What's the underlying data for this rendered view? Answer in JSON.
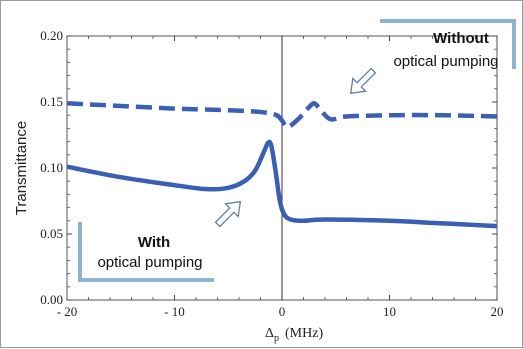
{
  "chart_data": {
    "type": "line",
    "xlabel_main": "Δ",
    "xlabel_sub": "p",
    "xlabel_unit": "(MHz)",
    "ylabel": "Transmittance",
    "xlim": [
      -20,
      20
    ],
    "ylim": [
      0.0,
      0.2
    ],
    "xticks": [
      -20,
      -10,
      0,
      10,
      20
    ],
    "xtick_labels": [
      "- 20",
      "- 10",
      "0",
      "10",
      "20"
    ],
    "yticks": [
      0.0,
      0.05,
      0.1,
      0.15,
      0.2
    ],
    "ytick_labels": [
      "0.00",
      "0.05",
      "0.10",
      "0.15",
      "0.20"
    ],
    "series": [
      {
        "name": "Without optical pumping",
        "style": "dashed",
        "color": "#3a5fb5",
        "x": [
          -20,
          -15,
          -10,
          -6,
          -3,
          -1.5,
          -0.5,
          0,
          0.5,
          1.5,
          2.5,
          3,
          3.5,
          4.5,
          6,
          10,
          15,
          20
        ],
        "y": [
          0.149,
          0.147,
          0.145,
          0.144,
          0.143,
          0.142,
          0.14,
          0.136,
          0.131,
          0.137,
          0.146,
          0.149,
          0.145,
          0.137,
          0.139,
          0.14,
          0.14,
          0.139
        ]
      },
      {
        "name": "With optical pumping",
        "style": "solid",
        "color": "#3a5fb5",
        "x": [
          -20,
          -15,
          -10,
          -7,
          -5,
          -3.5,
          -2.5,
          -1.8,
          -1.3,
          -1,
          -0.6,
          -0.2,
          0.2,
          0.8,
          2,
          4,
          10,
          15,
          20
        ],
        "y": [
          0.101,
          0.093,
          0.087,
          0.084,
          0.085,
          0.09,
          0.098,
          0.11,
          0.119,
          0.117,
          0.098,
          0.075,
          0.065,
          0.061,
          0.06,
          0.061,
          0.06,
          0.058,
          0.056
        ]
      }
    ],
    "vline_x": 0,
    "annotations": [
      {
        "bold": "Without",
        "text": "optical pumping"
      },
      {
        "bold": "With",
        "text": "optical pumping"
      }
    ],
    "grid": false
  }
}
